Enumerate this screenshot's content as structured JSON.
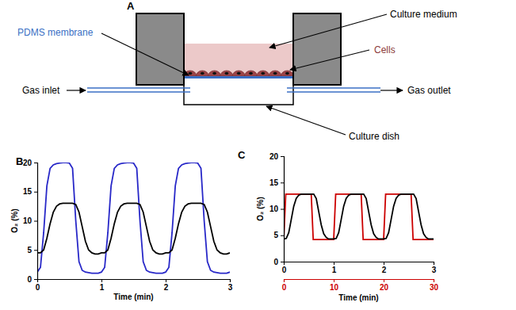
{
  "diagram": {
    "title": "A",
    "labels": [
      "PDMS membrane",
      "Culture medium",
      "Cells",
      "Gas inlet",
      "Gas outlet",
      "Culture dish"
    ]
  },
  "chart_data": [
    {
      "type": "line",
      "title": "B",
      "xlabel": "Time (min)",
      "ylabel": "O₂ (%)",
      "xlim": [
        0,
        3
      ],
      "xticks": [
        0,
        1,
        2,
        3
      ],
      "ylim": [
        0,
        20
      ],
      "yticks": [
        0,
        5,
        10,
        15,
        20
      ],
      "x": [
        0,
        0.05,
        0.1,
        0.15,
        0.2,
        0.25,
        0.3,
        0.35,
        0.4,
        0.45,
        0.5,
        0.55,
        0.6,
        0.65,
        0.7,
        0.75,
        0.8,
        0.85,
        0.9,
        0.95,
        1,
        1.05,
        1.1,
        1.15,
        1.2,
        1.25,
        1.3,
        1.35,
        1.4,
        1.45,
        1.5,
        1.55,
        1.6,
        1.65,
        1.7,
        1.75,
        1.8,
        1.85,
        1.9,
        1.95,
        2,
        2.05,
        2.1,
        2.15,
        2.2,
        2.25,
        2.3,
        2.35,
        2.4,
        2.45,
        2.5,
        2.55,
        2.6,
        2.65,
        2.7,
        2.75,
        2.8,
        2.85,
        2.9,
        2.95,
        3
      ],
      "series": [
        {
          "color": "#2828c8",
          "values": [
            1.2,
            2,
            8,
            16,
            19,
            19.6,
            19.8,
            19.9,
            20,
            20,
            19.9,
            19,
            10,
            3,
            1.5,
            1.2,
            1.1,
            1,
            1,
            1,
            1.2,
            2,
            8,
            16,
            19,
            19.6,
            19.8,
            19.9,
            20,
            20,
            19.9,
            19,
            10,
            3,
            1.5,
            1.2,
            1.1,
            1,
            1,
            1,
            1.2,
            2,
            8,
            16,
            19,
            19.6,
            19.8,
            19.9,
            20,
            20,
            19.9,
            19,
            10,
            3,
            1.5,
            1.2,
            1.1,
            1,
            1,
            1,
            1.2
          ]
        },
        {
          "color": "#000000",
          "values": [
            4.5,
            4.5,
            5,
            7,
            9.5,
            11.5,
            12.5,
            12.9,
            13,
            13,
            13,
            13,
            12.8,
            11.5,
            9,
            6.5,
            5,
            4.5,
            4.3,
            4.3,
            4.5,
            4.5,
            5,
            7,
            9.5,
            11.5,
            12.5,
            12.9,
            13,
            13,
            13,
            13,
            12.8,
            11.5,
            9,
            6.5,
            5,
            4.5,
            4.3,
            4.3,
            4.5,
            4.5,
            5,
            7,
            9.5,
            11.5,
            12.5,
            12.9,
            13,
            13,
            13,
            13,
            12.8,
            11.5,
            9,
            6.5,
            5,
            4.5,
            4.3,
            4.3,
            4.5
          ]
        }
      ]
    },
    {
      "type": "line",
      "title": "C",
      "xlabel": "Time (min)",
      "ylabel": "O₂ (%)",
      "xlim": [
        0,
        3
      ],
      "xticks": [
        0,
        1,
        2,
        3
      ],
      "x2lim": [
        0,
        30
      ],
      "x2ticks": [
        0,
        10,
        20,
        30
      ],
      "ylim": [
        0,
        20
      ],
      "yticks": [
        0,
        5,
        10,
        15,
        20
      ],
      "x": [
        0,
        0.05,
        0.1,
        0.15,
        0.2,
        0.25,
        0.3,
        0.35,
        0.4,
        0.45,
        0.5,
        0.55,
        0.6,
        0.65,
        0.7,
        0.75,
        0.8,
        0.85,
        0.9,
        0.95,
        1,
        1.05,
        1.1,
        1.15,
        1.2,
        1.25,
        1.3,
        1.35,
        1.4,
        1.45,
        1.5,
        1.55,
        1.6,
        1.65,
        1.7,
        1.75,
        1.8,
        1.85,
        1.9,
        1.95,
        2,
        2.05,
        2.1,
        2.15,
        2.2,
        2.25,
        2.3,
        2.35,
        2.4,
        2.45,
        2.5,
        2.55,
        2.6,
        2.65,
        2.7,
        2.75,
        2.8,
        2.85,
        2.9,
        2.95,
        3
      ],
      "series": [
        {
          "color": "#cc0000",
          "axis": "x2",
          "x": [
            0,
            0.4,
            5.5,
            5.9,
            10,
            10.4,
            15.5,
            15.9,
            20,
            20.4,
            25.5,
            25.9,
            30
          ],
          "values": [
            4.2,
            12.8,
            12.8,
            4.2,
            4.2,
            12.8,
            12.8,
            4.2,
            4.2,
            12.8,
            12.8,
            4.2,
            4.2
          ]
        },
        {
          "color": "#000000",
          "values": [
            4.3,
            4.4,
            5.5,
            8,
            10.5,
            12,
            12.6,
            12.8,
            12.8,
            12.8,
            12.8,
            12.8,
            12.8,
            12,
            9.5,
            7,
            5.3,
            4.6,
            4.3,
            4.3,
            4.3,
            4.4,
            5.5,
            8,
            10.5,
            12,
            12.6,
            12.8,
            12.8,
            12.8,
            12.8,
            12.8,
            12.8,
            12,
            9.5,
            7,
            5.3,
            4.6,
            4.3,
            4.3,
            4.3,
            4.4,
            5.5,
            8,
            10.5,
            12,
            12.6,
            12.8,
            12.8,
            12.8,
            12.8,
            12.8,
            12.8,
            12,
            9.5,
            7,
            5.3,
            4.6,
            4.3,
            4.3,
            4.3
          ]
        }
      ]
    }
  ]
}
